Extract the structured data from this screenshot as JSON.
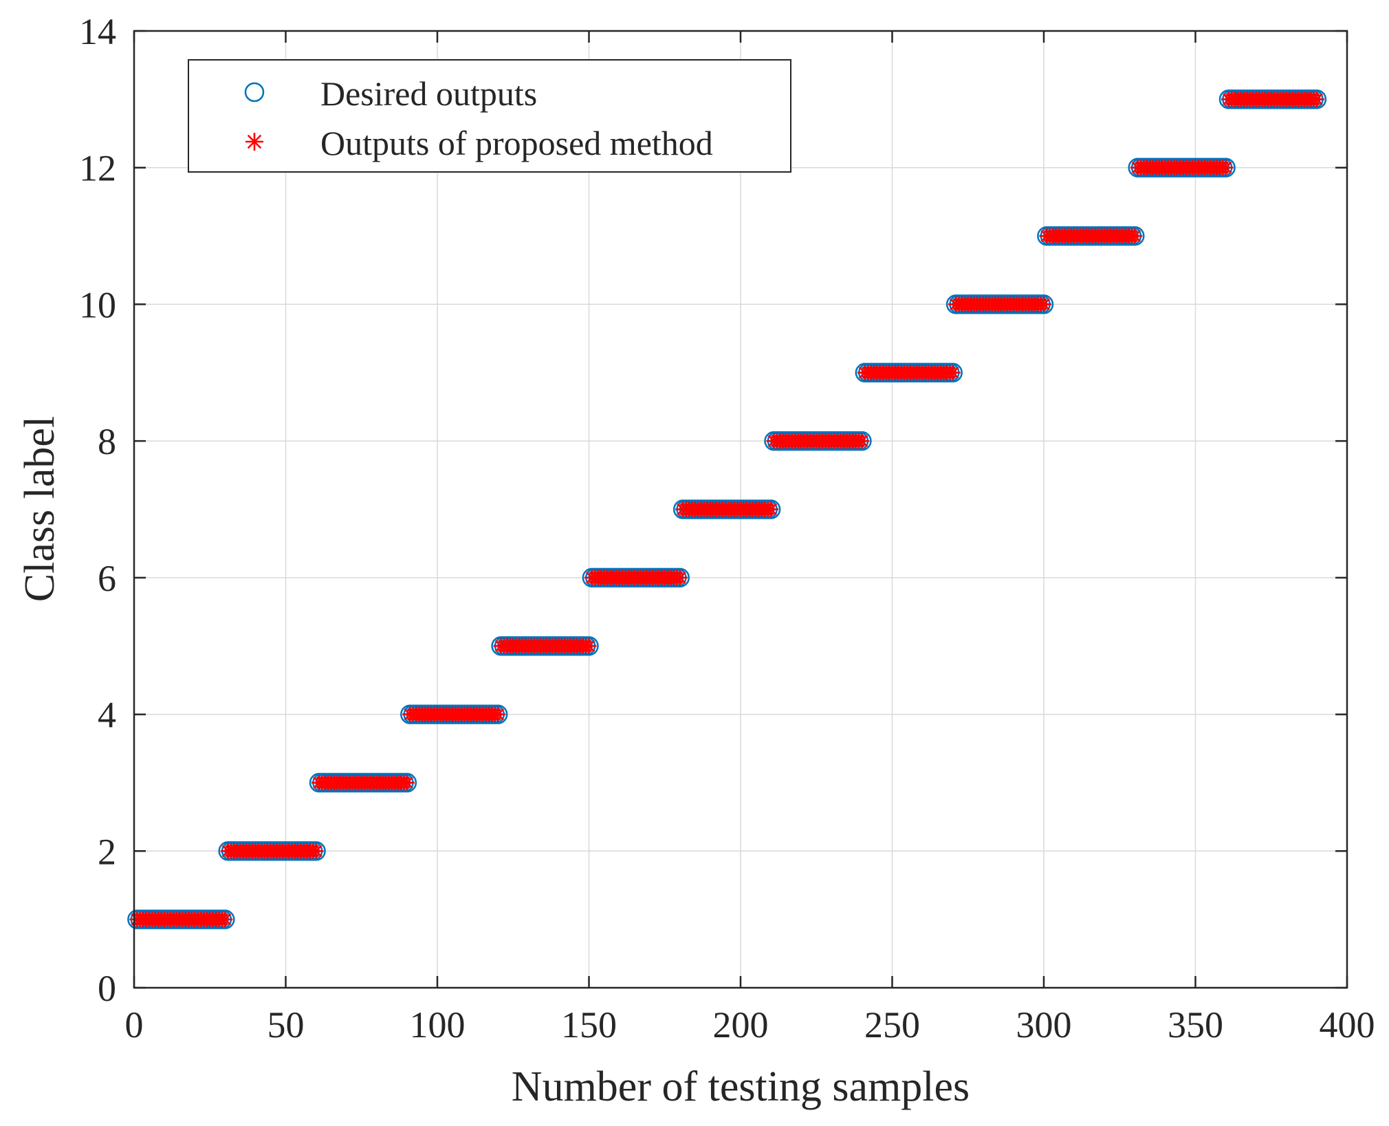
{
  "chart_data": {
    "type": "scatter",
    "title": "",
    "xlabel": "Number of testing samples",
    "ylabel": "Class label",
    "xlim": [
      0,
      400
    ],
    "ylim": [
      0,
      14
    ],
    "xticks": [
      0,
      50,
      100,
      150,
      200,
      250,
      300,
      350,
      400
    ],
    "yticks": [
      0,
      2,
      4,
      6,
      8,
      10,
      12,
      14
    ],
    "grid": true,
    "legend_position": "top-left",
    "samples_per_class": 30,
    "classes": [
      1,
      2,
      3,
      4,
      5,
      6,
      7,
      8,
      9,
      10,
      11,
      12,
      13
    ],
    "series": [
      {
        "name": "Desired outputs",
        "marker": "circle",
        "color": "#0072BD",
        "segments": [
          {
            "x_start": 1,
            "x_end": 30,
            "y": 1
          },
          {
            "x_start": 31,
            "x_end": 60,
            "y": 2
          },
          {
            "x_start": 61,
            "x_end": 90,
            "y": 3
          },
          {
            "x_start": 91,
            "x_end": 120,
            "y": 4
          },
          {
            "x_start": 121,
            "x_end": 150,
            "y": 5
          },
          {
            "x_start": 151,
            "x_end": 180,
            "y": 6
          },
          {
            "x_start": 181,
            "x_end": 210,
            "y": 7
          },
          {
            "x_start": 211,
            "x_end": 240,
            "y": 8
          },
          {
            "x_start": 241,
            "x_end": 270,
            "y": 9
          },
          {
            "x_start": 271,
            "x_end": 300,
            "y": 10
          },
          {
            "x_start": 301,
            "x_end": 330,
            "y": 11
          },
          {
            "x_start": 331,
            "x_end": 360,
            "y": 12
          },
          {
            "x_start": 361,
            "x_end": 390,
            "y": 13
          }
        ]
      },
      {
        "name": "Outputs of proposed method",
        "marker": "asterisk",
        "color": "#FF0000",
        "segments": [
          {
            "x_start": 1,
            "x_end": 30,
            "y": 1
          },
          {
            "x_start": 31,
            "x_end": 60,
            "y": 2
          },
          {
            "x_start": 61,
            "x_end": 90,
            "y": 3
          },
          {
            "x_start": 91,
            "x_end": 120,
            "y": 4
          },
          {
            "x_start": 121,
            "x_end": 150,
            "y": 5
          },
          {
            "x_start": 151,
            "x_end": 180,
            "y": 6
          },
          {
            "x_start": 181,
            "x_end": 210,
            "y": 7
          },
          {
            "x_start": 211,
            "x_end": 240,
            "y": 8
          },
          {
            "x_start": 241,
            "x_end": 270,
            "y": 9
          },
          {
            "x_start": 271,
            "x_end": 300,
            "y": 10
          },
          {
            "x_start": 301,
            "x_end": 330,
            "y": 11
          },
          {
            "x_start": 331,
            "x_end": 360,
            "y": 12
          },
          {
            "x_start": 361,
            "x_end": 390,
            "y": 13
          }
        ]
      }
    ]
  }
}
